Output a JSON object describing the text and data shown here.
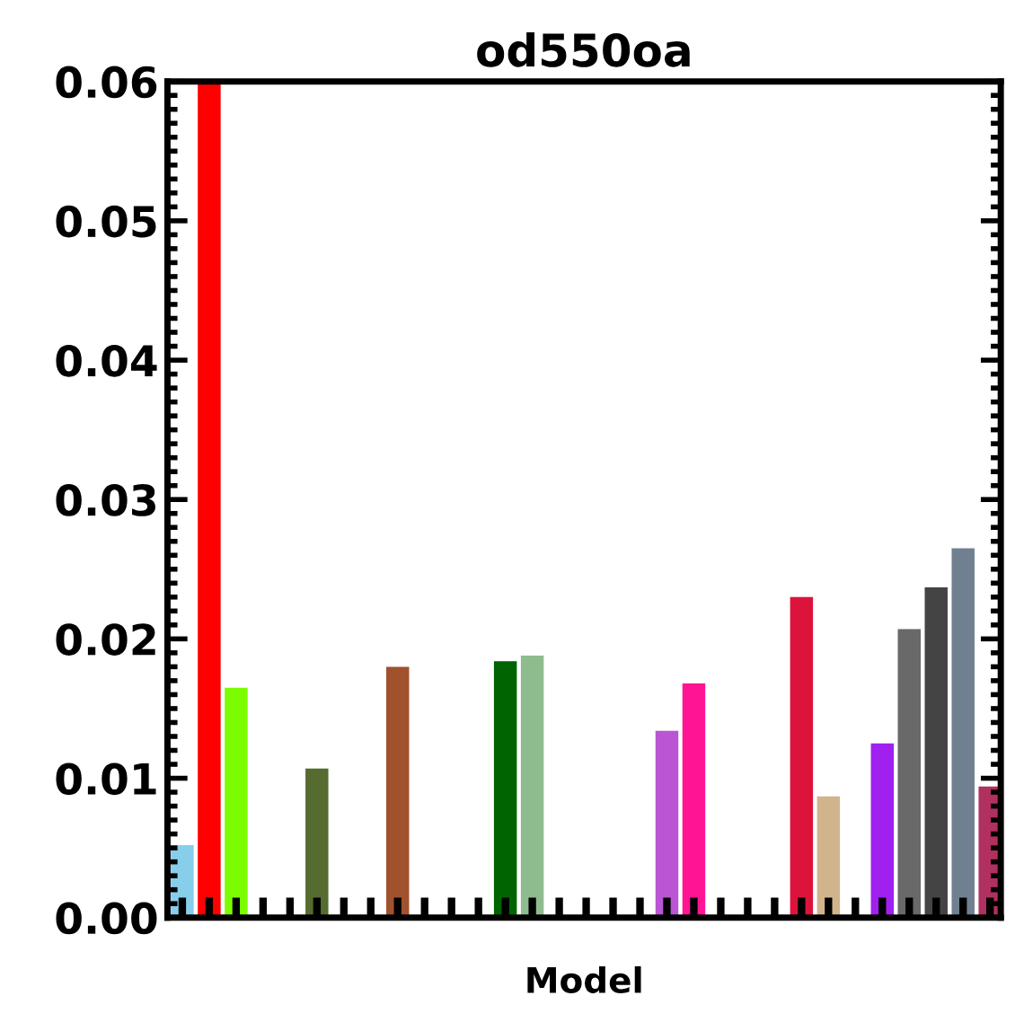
{
  "chart_data": {
    "type": "bar",
    "title": "od550oa",
    "xlabel": "Model",
    "categories": [
      null,
      null,
      null,
      null,
      null,
      null,
      null,
      null,
      null,
      null,
      null,
      null,
      null,
      null,
      null,
      null,
      null,
      null,
      null,
      null,
      null,
      null,
      null,
      null,
      null,
      null,
      null,
      null,
      null,
      null,
      null
    ],
    "values": [
      0.0052,
      0.06,
      0.0165,
      null,
      null,
      0.0107,
      null,
      null,
      0.018,
      null,
      null,
      null,
      0.0184,
      0.0188,
      null,
      null,
      null,
      null,
      0.0134,
      0.0168,
      null,
      null,
      null,
      0.023,
      0.0087,
      null,
      0.0125,
      0.0207,
      0.0237,
      0.0265,
      0.0094
    ],
    "colors": [
      "#87ceeb",
      "#ff0000",
      "#7cfc00",
      null,
      null,
      "#556b2f",
      null,
      null,
      "#a0522d",
      null,
      null,
      null,
      "#006400",
      "#8fbc8f",
      null,
      null,
      null,
      null,
      "#ba55d3",
      "#ff1493",
      null,
      null,
      null,
      "#dc143c",
      "#d2b48c",
      null,
      "#a020f0",
      "#696969",
      "#444444",
      "#708090",
      "#b03060"
    ],
    "ylim": [
      0,
      0.06
    ],
    "yticks": [
      {
        "value": 0,
        "label": "0.00"
      },
      {
        "value": 0.01,
        "label": "0.01"
      },
      {
        "value": 0.02,
        "label": "0.02"
      },
      {
        "value": 0.03,
        "label": "0.03"
      },
      {
        "value": 0.04,
        "label": "0.04"
      },
      {
        "value": 0.05,
        "label": "0.05"
      },
      {
        "value": 0.06,
        "label": "0.06"
      }
    ],
    "grid": false
  }
}
